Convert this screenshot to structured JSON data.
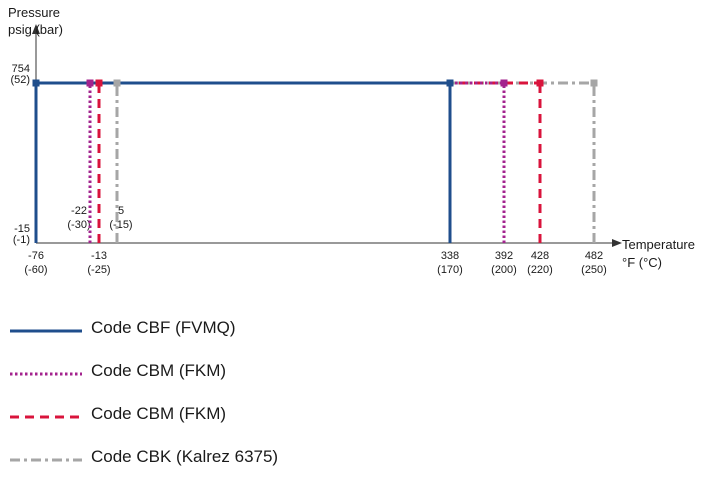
{
  "chart_data": {
    "type": "line",
    "ylabel": [
      "Pressure",
      "psig (bar)"
    ],
    "xlabel": [
      "Temperature",
      "°F (°C)"
    ],
    "xlim": [
      -76,
      482
    ],
    "ylim": [
      -15,
      754
    ],
    "y_ticks": [
      {
        "value": 754,
        "label": [
          "754",
          "(52)"
        ]
      },
      {
        "value": -15,
        "label": [
          "-15",
          "(-1)"
        ]
      }
    ],
    "x_ticks": [
      {
        "value": -76,
        "label": [
          "-76",
          "(-60)"
        ]
      },
      {
        "value": -13,
        "label": [
          "-13",
          "(-25)"
        ]
      },
      {
        "value": 338,
        "label": [
          "338",
          "(170)"
        ]
      },
      {
        "value": 392,
        "label": [
          "392",
          "(200)"
        ]
      },
      {
        "value": 428,
        "label": [
          "428",
          "(220)"
        ]
      },
      {
        "value": 482,
        "label": [
          "482",
          "(250)"
        ]
      }
    ],
    "annotations": [
      {
        "x": -22,
        "label": [
          "-22",
          "(-30)"
        ]
      },
      {
        "x": 5,
        "label": [
          "5",
          "(-15)"
        ]
      }
    ],
    "series": [
      {
        "name": "Code CBF (FVMQ)",
        "color": "#1f4e8c",
        "dash": "solid",
        "min_temp": -76,
        "max_temp": 338,
        "max_pressure": 754
      },
      {
        "name": "Code CBM (FKM)",
        "color": "#a3238e",
        "dash": "dotted",
        "min_temp": -22,
        "max_temp": 392,
        "max_pressure": 754
      },
      {
        "name": "Code CBM (FKM)",
        "color": "#d9143c",
        "dash": "dashed",
        "min_temp": -13,
        "max_temp": 428,
        "max_pressure": 754
      },
      {
        "name": "Code CBK (Kalrez 6375)",
        "color": "#a6a6a6",
        "dash": "dashdot",
        "min_temp": 5,
        "max_temp": 482,
        "max_pressure": 754
      }
    ]
  }
}
